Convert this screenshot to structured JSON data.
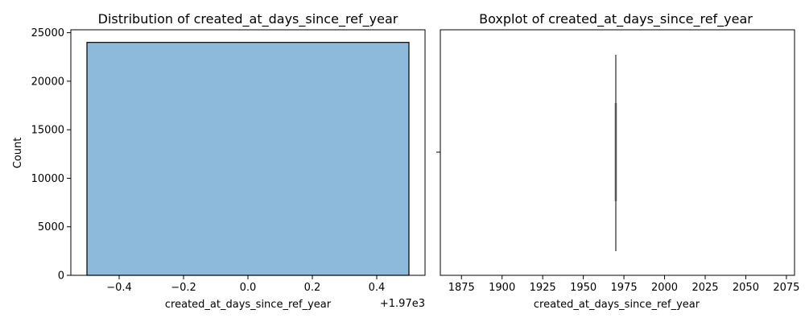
{
  "chart_data": [
    {
      "type": "bar",
      "title": "Distribution of created_at_days_since_ref_year",
      "xlabel": "created_at_days_since_ref_year",
      "ylabel": "Count",
      "x_offset_label": "+1.97e3",
      "categories": [
        "1970"
      ],
      "bins": [
        {
          "x0": 1969.5,
          "x1": 1970.5,
          "count": 24000
        }
      ],
      "x_ticks": [
        "−0.4",
        "−0.2",
        "0.0",
        "0.2",
        "0.4"
      ],
      "y_ticks": [
        "0",
        "5000",
        "10000",
        "15000",
        "20000",
        "25000"
      ],
      "x_range": [
        1969.45,
        1970.55
      ],
      "ylim": [
        0,
        25300
      ],
      "color": "#8db9da"
    },
    {
      "type": "boxplot",
      "title": "Boxplot of created_at_days_since_ref_year",
      "xlabel": "created_at_days_since_ref_year",
      "x_ticks": [
        "1875",
        "1900",
        "1925",
        "1950",
        "1975",
        "2000",
        "2025",
        "2050",
        "2075"
      ],
      "xlim": [
        1862,
        2080
      ],
      "box": {
        "min": 1970,
        "q1": 1970,
        "median": 1970,
        "q3": 1970,
        "max": 1970
      },
      "color": "#555555"
    }
  ]
}
